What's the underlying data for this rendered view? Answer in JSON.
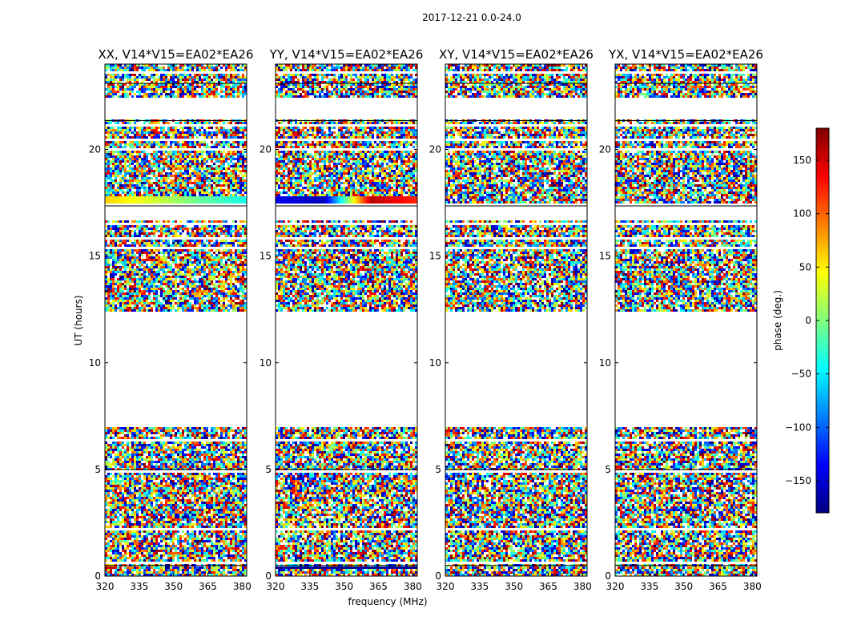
{
  "figure": {
    "suptitle": "2017-12-21 0.0-24.0",
    "ylabel": "UT (hours)",
    "xlabel": "frequency (MHz)"
  },
  "chart_data": {
    "type": "heatmap",
    "title": "2017-12-21 0.0-24.0",
    "xlabel": "frequency (MHz)",
    "ylabel": "UT (hours)",
    "xlim": [
      320,
      382
    ],
    "ylim": [
      0,
      24
    ],
    "x_ticks": [
      320,
      335,
      350,
      365,
      380
    ],
    "y_ticks": [
      0,
      5,
      10,
      15,
      20
    ],
    "colorbar": {
      "label": "phase (deg.)",
      "range": [
        -180,
        180
      ],
      "ticks": [
        150,
        100,
        50,
        0,
        -50,
        -100,
        -150
      ],
      "tick_labels": [
        "150",
        "100",
        "50",
        "0",
        "−50",
        "−100",
        "−150"
      ],
      "colormap": [
        "#00007f",
        "#0000ff",
        "#007fff",
        "#00ffff",
        "#7fff7f",
        "#ffff00",
        "#ff7f00",
        "#ff0000",
        "#7f0000"
      ]
    },
    "panels": [
      {
        "title": "XX, V14*V15=EA02*EA26"
      },
      {
        "title": "YY, V14*V15=EA02*EA26"
      },
      {
        "title": "XY, V14*V15=EA02*EA26"
      },
      {
        "title": "YX, V14*V15=EA02*EA26"
      }
    ],
    "blank_intervals_ut": [
      [
        7.0,
        12.4
      ],
      [
        21.4,
        22.3
      ],
      [
        17.3,
        17.5
      ],
      [
        16.7,
        17.3
      ],
      [
        4.8,
        5.0
      ],
      [
        0.4,
        0.5
      ]
    ],
    "smooth_bands": [
      {
        "panel": 0,
        "ut": [
          17.5,
          17.8
        ],
        "color_values": [
          60,
          30,
          -10,
          -40
        ]
      },
      {
        "panel": 1,
        "ut": [
          17.5,
          17.8
        ],
        "color_values": [
          -140,
          -160,
          160,
          120
        ]
      },
      {
        "panel": 1,
        "ut": [
          0.3,
          0.5
        ],
        "color_values": [
          -170,
          -170,
          -170,
          -170
        ]
      }
    ]
  }
}
